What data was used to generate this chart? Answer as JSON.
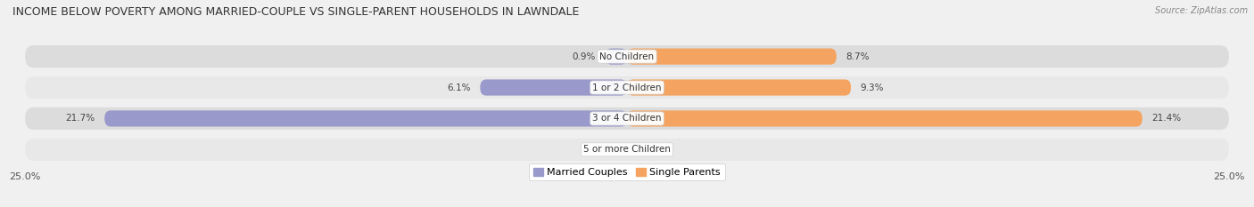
{
  "title": "INCOME BELOW POVERTY AMONG MARRIED-COUPLE VS SINGLE-PARENT HOUSEHOLDS IN LAWNDALE",
  "source": "Source: ZipAtlas.com",
  "categories": [
    "No Children",
    "1 or 2 Children",
    "3 or 4 Children",
    "5 or more Children"
  ],
  "married_values": [
    0.9,
    6.1,
    21.7,
    0.0
  ],
  "single_values": [
    8.7,
    9.3,
    21.4,
    0.0
  ],
  "married_color": "#9999cc",
  "single_color": "#f4a460",
  "row_bg_color": "#dcdcdc",
  "row_bg_color2": "#e8e8e8",
  "married_label": "Married Couples",
  "single_label": "Single Parents",
  "xlim": 25.0,
  "bg_color": "#f0f0f0",
  "title_fontsize": 9.0,
  "source_fontsize": 7.0,
  "label_fontsize": 7.5,
  "value_fontsize": 7.5,
  "tick_fontsize": 8.0,
  "legend_fontsize": 8.0
}
